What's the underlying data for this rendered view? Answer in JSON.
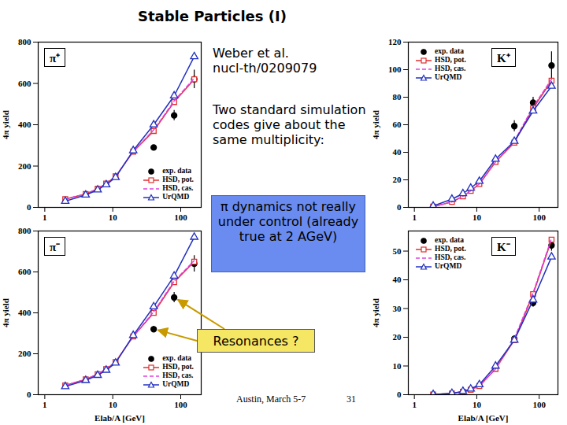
{
  "slide": {
    "title": "Stable Particles (I)",
    "reference": [
      "Weber et al.",
      "nucl-th/0209079"
    ],
    "note": "Two standard simulation codes give about the same multiplicity:",
    "box": "π dynamics not really under control (already true at 2 AGeV)",
    "footer": "Austin, March 5-7",
    "page": "31"
  },
  "chart_data": [
    {
      "type": "line",
      "title": "π⁺",
      "y_label": "4π yield",
      "x": [
        2,
        4,
        6,
        8,
        11,
        20,
        40,
        80,
        158
      ],
      "xlim": [
        0.8,
        200
      ],
      "xticks": [
        1,
        10,
        100
      ],
      "log": "x",
      "ylim": [
        0,
        800
      ],
      "yticks": [
        0,
        200,
        400,
        600,
        800
      ],
      "grid": false,
      "legend": "lower right",
      "series": [
        {
          "name": "exp. data",
          "color": "#000000",
          "marker": "circle",
          "line_style": "none",
          "values": [
            null,
            null,
            null,
            null,
            null,
            null,
            290,
            445,
            620
          ],
          "errors": [
            null,
            null,
            null,
            null,
            null,
            null,
            12,
            25,
            45
          ]
        },
        {
          "name": "HSD, pot.",
          "color": "#e03030",
          "marker": "square",
          "line_style": "solid",
          "values": [
            40,
            65,
            90,
            115,
            150,
            270,
            370,
            510,
            620
          ]
        },
        {
          "name": "HSD, cas.",
          "color": "#e040e0",
          "marker": "none",
          "line_style": "dashed",
          "values": [
            40,
            65,
            90,
            115,
            150,
            270,
            375,
            515,
            625
          ]
        },
        {
          "name": "UrQMD",
          "color": "#2030c0",
          "marker": "triangle",
          "line_style": "solid",
          "values": [
            30,
            60,
            85,
            110,
            145,
            275,
            400,
            540,
            730
          ]
        }
      ]
    },
    {
      "type": "line",
      "title": "K⁺",
      "y_label": "4π yield",
      "x": [
        2,
        4,
        6,
        8,
        11,
        20,
        40,
        80,
        158
      ],
      "xlim": [
        0.8,
        200
      ],
      "xticks": [
        1,
        10,
        100
      ],
      "log": "x",
      "ylim": [
        0,
        120
      ],
      "yticks": [
        0,
        20,
        40,
        60,
        80,
        100,
        120
      ],
      "grid": false,
      "legend": "upper left",
      "series": [
        {
          "name": "exp. data",
          "color": "#000000",
          "marker": "circle",
          "line_style": "none",
          "values": [
            null,
            null,
            null,
            null,
            null,
            null,
            59,
            76,
            103
          ],
          "errors": [
            null,
            null,
            null,
            null,
            null,
            null,
            4,
            4,
            10
          ]
        },
        {
          "name": "HSD, pot.",
          "color": "#e03030",
          "marker": "square",
          "line_style": "solid",
          "values": [
            0.5,
            4,
            8,
            12,
            17,
            33,
            47,
            72,
            92
          ]
        },
        {
          "name": "HSD, cas.",
          "color": "#e040e0",
          "marker": "none",
          "line_style": "dashed",
          "values": [
            0.5,
            4,
            8,
            12,
            17,
            33,
            48,
            73,
            93
          ]
        },
        {
          "name": "UrQMD",
          "color": "#2030c0",
          "marker": "triangle",
          "line_style": "solid",
          "values": [
            1,
            6,
            10,
            14,
            19,
            35,
            48,
            70,
            88
          ]
        }
      ]
    },
    {
      "type": "line",
      "title": "π⁻",
      "y_label": "4π yield",
      "x_label": "Elab/A [GeV]",
      "x": [
        2,
        4,
        6,
        8,
        11,
        20,
        40,
        80,
        158
      ],
      "xlim": [
        0.8,
        200
      ],
      "xticks": [
        1,
        10,
        100
      ],
      "log": "x",
      "ylim": [
        0,
        800
      ],
      "yticks": [
        0,
        200,
        400,
        600,
        800
      ],
      "grid": false,
      "legend": "lower right",
      "annotations": [
        {
          "text": "Resonances ?",
          "x": [
            40,
            80
          ]
        }
      ],
      "series": [
        {
          "name": "exp. data",
          "color": "#000000",
          "marker": "circle",
          "line_style": "none",
          "values": [
            null,
            null,
            null,
            null,
            null,
            null,
            320,
            475,
            640
          ],
          "errors": [
            null,
            null,
            null,
            null,
            null,
            null,
            15,
            25,
            40
          ]
        },
        {
          "name": "HSD, pot.",
          "color": "#e03030",
          "marker": "square",
          "line_style": "solid",
          "values": [
            45,
            75,
            100,
            125,
            160,
            285,
            400,
            550,
            650
          ]
        },
        {
          "name": "HSD, cas.",
          "color": "#e040e0",
          "marker": "none",
          "line_style": "dashed",
          "values": [
            45,
            75,
            100,
            125,
            160,
            285,
            405,
            555,
            655
          ]
        },
        {
          "name": "UrQMD",
          "color": "#2030c0",
          "marker": "triangle",
          "line_style": "solid",
          "values": [
            40,
            70,
            95,
            120,
            155,
            290,
            430,
            580,
            770
          ]
        }
      ]
    },
    {
      "type": "line",
      "title": "K⁻",
      "y_label": "4π yield",
      "x_label": "Elab/A [GeV]",
      "x": [
        2,
        4,
        6,
        8,
        11,
        20,
        40,
        80,
        158
      ],
      "xlim": [
        0.8,
        200
      ],
      "xticks": [
        1,
        10,
        100
      ],
      "log": "x",
      "ylim": [
        0,
        57
      ],
      "yticks": [
        0,
        10,
        20,
        30,
        40,
        50
      ],
      "grid": false,
      "legend": "upper left",
      "series": [
        {
          "name": "exp. data",
          "color": "#000000",
          "marker": "circle",
          "line_style": "none",
          "values": [
            null,
            null,
            null,
            null,
            null,
            null,
            19.5,
            32,
            52
          ],
          "errors": [
            null,
            null,
            null,
            null,
            null,
            null,
            1,
            1.5,
            2
          ]
        },
        {
          "name": "HSD, pot.",
          "color": "#e03030",
          "marker": "square",
          "line_style": "solid",
          "values": [
            0.05,
            0.4,
            1,
            1.7,
            3,
            9,
            19,
            35,
            54
          ]
        },
        {
          "name": "HSD, cas.",
          "color": "#e040e0",
          "marker": "none",
          "line_style": "dashed",
          "values": [
            0.05,
            0.4,
            1,
            1.7,
            3,
            9,
            19.5,
            35.5,
            54.5
          ]
        },
        {
          "name": "UrQMD",
          "color": "#2030c0",
          "marker": "triangle",
          "line_style": "solid",
          "values": [
            0.1,
            0.5,
            1.2,
            2,
            3.5,
            10,
            19,
            33,
            48
          ]
        }
      ]
    }
  ]
}
